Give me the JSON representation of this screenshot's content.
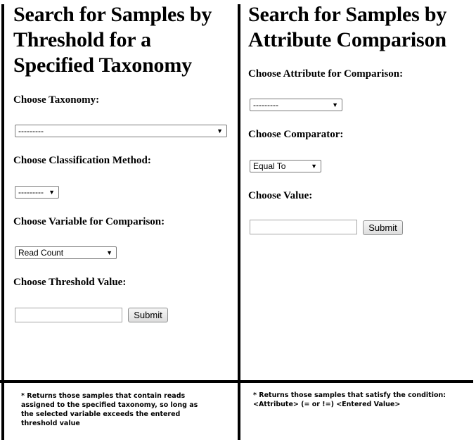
{
  "left_panel": {
    "title_lines": [
      "Search for Samples by",
      "Threshold for a",
      "Specified Taxonomy"
    ],
    "taxonomy_label": "Choose Taxonomy:",
    "taxonomy_value": "---------",
    "classification_label": "Choose Classification Method:",
    "classification_value": "---------",
    "variable_label": "Choose Variable for Comparison:",
    "variable_value": "Read Count",
    "threshold_label": "Choose Threshold Value:",
    "threshold_value": "",
    "submit_label": "Submit",
    "note_lines": [
      "* Returns those samples that contain reads",
      "assigned to the specified taxonomy, so long as",
      "the selected variable exceeds the entered",
      "threshold value"
    ]
  },
  "right_panel": {
    "title_lines": [
      "Search for Samples by",
      "Attribute Comparison"
    ],
    "attribute_label": "Choose Attribute for Comparison:",
    "attribute_value": "---------",
    "comparator_label": "Choose Comparator:",
    "comparator_value": "Equal To",
    "value_label": "Choose Value:",
    "value_value": "",
    "submit_label": "Submit",
    "note_lines": [
      "* Returns those samples that satisfy the condition:",
      "<Attribute> (= or !=) <Entered Value>"
    ]
  },
  "icons": {
    "dropdown": "dropdown-arrow-icon"
  }
}
